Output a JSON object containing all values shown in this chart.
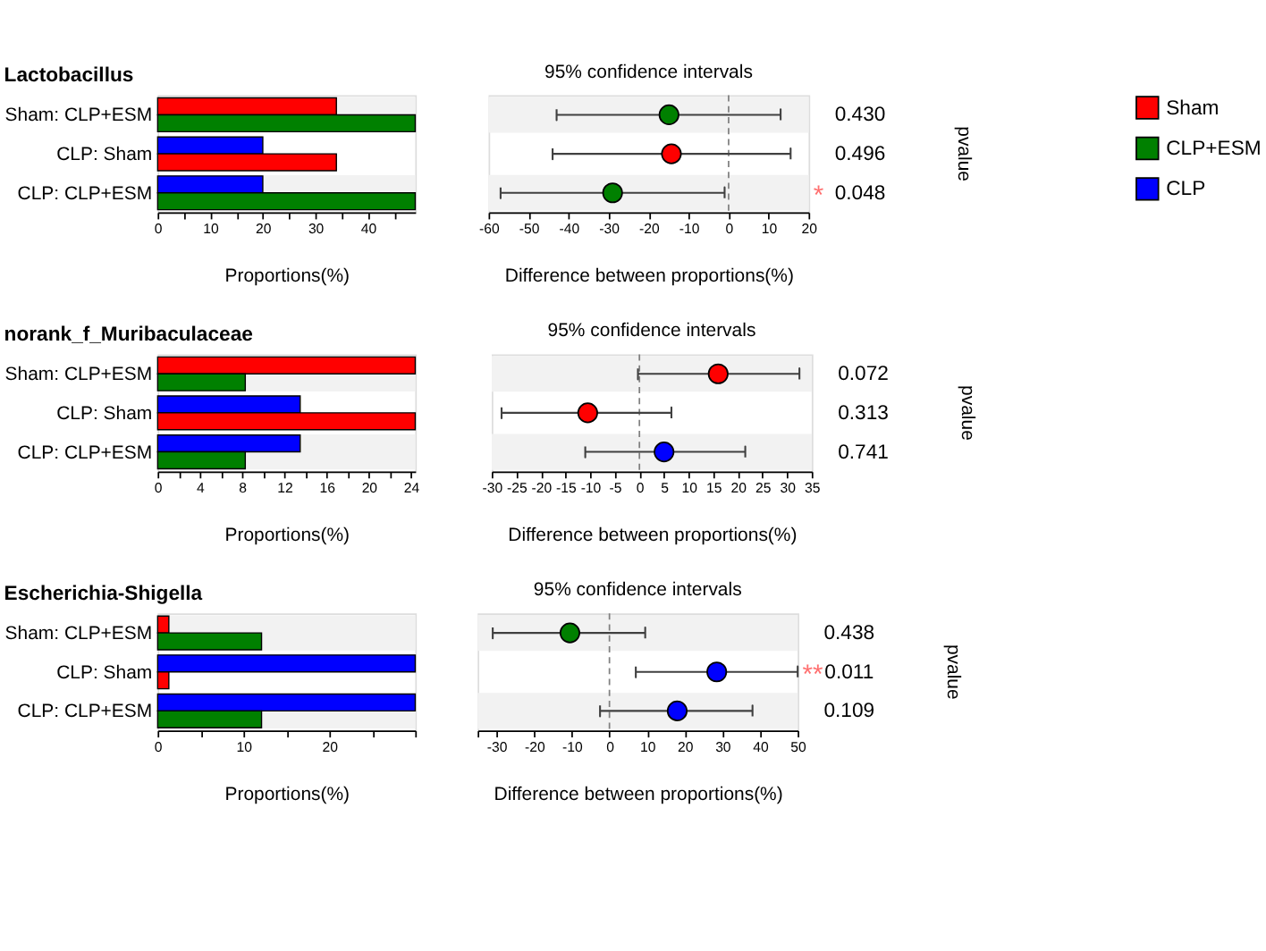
{
  "chart_data": [
    {
      "type": "bar",
      "orientation": "horizontal",
      "title": "Lactobacillus",
      "xlabel": "Proportions(%)",
      "legend": "top right",
      "categories": [
        "Sham: CLP+ESM",
        "CLP: Sham",
        "CLP: CLP+ESM"
      ],
      "series": [
        {
          "name": "Sham",
          "color": "#ff0000",
          "values": [
            34,
            34,
            null
          ]
        },
        {
          "name": "CLP+ESM",
          "color": "#008000",
          "values": [
            49,
            null,
            49
          ]
        },
        {
          "name": "CLP",
          "color": "#0000ff",
          "values": [
            null,
            20,
            20
          ]
        }
      ],
      "xlim": [
        0,
        49
      ],
      "xticks": [
        0,
        {
          "value": 5,
          "label": null
        },
        10,
        {
          "value": 15,
          "label": null
        },
        20,
        {
          "value": 25,
          "label": null
        },
        30,
        {
          "value": 35,
          "label": null
        },
        40,
        {
          "value": 45,
          "label": null
        }
      ],
      "bands": [
        {
          "axis": "y",
          "from": "Sham: CLP+ESM",
          "to": "Sham: CLP+ESM",
          "color": "#f2f2f2"
        },
        {
          "axis": "y",
          "from": "CLP: CLP+ESM",
          "to": "CLP: CLP+ESM",
          "color": "#f2f2f2"
        }
      ]
    },
    {
      "type": "scatter",
      "orientation": "horizontal",
      "marker": "circle",
      "title": "95% confidence intervals",
      "xlabel": "Difference between proportions(%)",
      "y2label": "pvalue",
      "tick_labels": "x",
      "categories": [
        null,
        null,
        null
      ],
      "values": [
        -14.9,
        -14.3,
        -29
      ],
      "errors": [
        [
          -43,
          13
        ],
        [
          -44,
          15.5
        ],
        [
          -57,
          -1
        ]
      ],
      "colors": [
        "#008000",
        "#ff0000",
        "#008000"
      ],
      "xlim": [
        -60,
        20
      ],
      "xticks": [
        -60,
        -50,
        -40,
        -30,
        -20,
        -10,
        0,
        10,
        20
      ],
      "ref_lines": [
        {
          "axis": "x",
          "value": 0,
          "color": "#808080",
          "line_style": "dashed"
        }
      ],
      "annotations": [
        "0.430",
        "0.496",
        "0.048",
        "*"
      ]
    },
    {
      "type": "bar",
      "orientation": "horizontal",
      "title": "norank_f_Muribaculaceae",
      "xlabel": "Proportions(%)",
      "categories": [
        "Sham: CLP+ESM",
        "CLP: Sham",
        "CLP: CLP+ESM"
      ],
      "series": [
        {
          "name": "Sham",
          "color": "#ff0000",
          "values": [
            24.4,
            24.4,
            null
          ]
        },
        {
          "name": "CLP+ESM",
          "color": "#008000",
          "values": [
            8.3,
            null,
            8.3
          ]
        },
        {
          "name": "CLP",
          "color": "#0000ff",
          "values": [
            null,
            13.5,
            13.5
          ]
        }
      ],
      "xlim": [
        0,
        24.4
      ],
      "xticks": [
        0,
        {
          "value": 2,
          "label": null
        },
        4,
        {
          "value": 6,
          "label": null
        },
        8,
        {
          "value": 10,
          "label": null
        },
        12,
        {
          "value": 14,
          "label": null
        },
        16,
        {
          "value": 18,
          "label": null
        },
        20,
        {
          "value": 22,
          "label": null
        },
        24
      ],
      "bands": [
        {
          "axis": "y",
          "from": "Sham: CLP+ESM",
          "to": "Sham: CLP+ESM",
          "color": "#f2f2f2"
        },
        {
          "axis": "y",
          "from": "CLP: CLP+ESM",
          "to": "CLP: CLP+ESM",
          "color": "#f2f2f2"
        }
      ]
    },
    {
      "type": "scatter",
      "orientation": "horizontal",
      "marker": "circle",
      "title": "95% confidence intervals",
      "xlabel": "Difference between proportions(%)",
      "y2label": "pvalue",
      "tick_labels": "x",
      "categories": [
        null,
        null,
        null
      ],
      "values": [
        16,
        -10.5,
        5
      ],
      "errors": [
        [
          -0.3,
          32.5
        ],
        [
          -28,
          6.5
        ],
        [
          -11,
          21.5
        ]
      ],
      "colors": [
        "#ff0000",
        "#ff0000",
        "#0000ff"
      ],
      "xlim": [
        -30,
        35
      ],
      "xticks": [
        -30,
        -25,
        -20,
        -15,
        -10,
        -5,
        0,
        5,
        10,
        15,
        20,
        25,
        30,
        35
      ],
      "ref_lines": [
        {
          "axis": "x",
          "value": 0,
          "color": "#808080",
          "line_style": "dashed"
        }
      ],
      "annotations": [
        "0.072",
        "0.313",
        "0.741"
      ]
    },
    {
      "type": "bar",
      "orientation": "horizontal",
      "title": "Escherichia-Shigella",
      "xlabel": "Proportions(%)",
      "categories": [
        "Sham: CLP+ESM",
        "CLP: Sham",
        "CLP: CLP+ESM"
      ],
      "series": [
        {
          "name": "Sham",
          "color": "#ff0000",
          "values": [
            1.3,
            1.3,
            null
          ]
        },
        {
          "name": "CLP+ESM",
          "color": "#008000",
          "values": [
            12.1,
            null,
            12.1
          ]
        },
        {
          "name": "CLP",
          "color": "#0000ff",
          "values": [
            null,
            30,
            30
          ]
        }
      ],
      "xlim": [
        0,
        30
      ],
      "xticks": [
        0,
        {
          "value": 5,
          "label": null
        },
        10,
        {
          "value": 15,
          "label": null
        },
        20,
        {
          "value": 25,
          "label": null
        },
        {
          "value": 30,
          "label": null
        }
      ],
      "bands": [
        {
          "axis": "y",
          "from": "Sham: CLP+ESM",
          "to": "Sham: CLP+ESM",
          "color": "#f2f2f2"
        },
        {
          "axis": "y",
          "from": "CLP: CLP+ESM",
          "to": "CLP: CLP+ESM",
          "color": "#f2f2f2"
        }
      ]
    },
    {
      "type": "scatter",
      "orientation": "horizontal",
      "marker": "circle",
      "title": "95% confidence intervals",
      "xlabel": "Difference between proportions(%)",
      "y2label": "pvalue",
      "tick_labels": "x",
      "categories": [
        null,
        null,
        null
      ],
      "values": [
        -10.5,
        28.5,
        18
      ],
      "errors": [
        [
          -31,
          9.5
        ],
        [
          7,
          50
        ],
        [
          -2.5,
          38
        ]
      ],
      "colors": [
        "#008000",
        "#0000ff",
        "#0000ff"
      ],
      "xlim": [
        -35,
        50
      ],
      "xticks": [
        {
          "value": -35,
          "label": null
        },
        -30,
        -20,
        -10,
        0,
        10,
        20,
        30,
        40,
        50
      ],
      "ref_lines": [
        {
          "axis": "x",
          "value": 0,
          "color": "#808080",
          "line_style": "dashed"
        }
      ],
      "annotations": [
        "0.438",
        "0.011",
        "0.109",
        "**"
      ]
    }
  ]
}
